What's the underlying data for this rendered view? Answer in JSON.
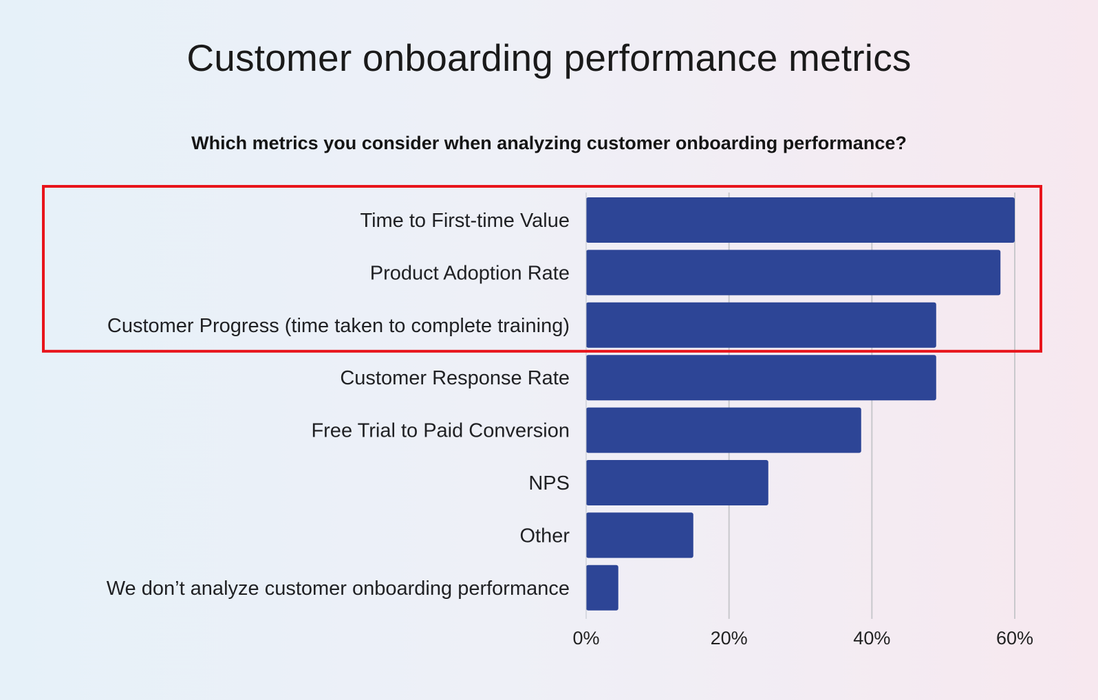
{
  "page": {
    "title": "Customer onboarding performance metrics"
  },
  "chart_data": {
    "type": "bar",
    "orientation": "horizontal",
    "title": "Which metrics you consider when analyzing customer onboarding performance?",
    "xlabel": "",
    "ylabel": "",
    "categories": [
      "Time to First-time Value",
      "Product Adoption Rate",
      "Customer Progress (time taken to complete training)",
      "Customer Response Rate",
      "Free Trial to Paid Conversion",
      "NPS",
      "Other",
      "We don’t analyze customer onboarding performance"
    ],
    "values": [
      60,
      58,
      49,
      49,
      38.5,
      25.5,
      15,
      4.5
    ],
    "value_unit": "%",
    "xlim": [
      0,
      60
    ],
    "x_ticks": [
      "0%",
      "20%",
      "40%",
      "60%"
    ],
    "grid": "vertical",
    "legend": "none",
    "bar_color": "#2d4596",
    "grid_color": "#c8c8cc",
    "highlight": {
      "categories": [
        "Time to First-time Value",
        "Product Adoption Rate",
        "Customer Progress (time taken to complete training)"
      ],
      "color": "#e8141b"
    }
  }
}
